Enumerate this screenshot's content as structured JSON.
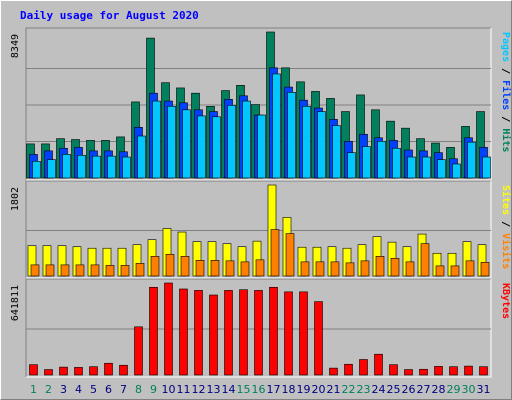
{
  "chart_data": {
    "type": "bar",
    "title": "Daily usage for August 2020",
    "colors": {
      "background": "#c0c0c0",
      "plot": "#c0c0c0",
      "title": "#0000ff",
      "hits": "#00805c",
      "files": "#0040ff",
      "pages": "#00c8ff",
      "visits": "#ff8000",
      "sites": "#ffff00",
      "kbytes": "#ff0000",
      "weekday_label": "#000080",
      "weekend_label": "#00805c",
      "gridline": "#808080"
    },
    "categories": [
      "1",
      "2",
      "3",
      "4",
      "5",
      "6",
      "7",
      "8",
      "9",
      "10",
      "11",
      "12",
      "13",
      "14",
      "15",
      "16",
      "17",
      "18",
      "19",
      "20",
      "21",
      "22",
      "23",
      "24",
      "25",
      "26",
      "27",
      "28",
      "29",
      "30",
      "31"
    ],
    "weekend_days": [
      "1",
      "2",
      "8",
      "9",
      "15",
      "16",
      "22",
      "23",
      "29",
      "30"
    ],
    "panels": [
      {
        "id": "hits-panel",
        "max_label": "8349",
        "ylim": [
          0,
          8349
        ],
        "legend": [
          {
            "text": "Pages",
            "color": "#00c8ff"
          },
          {
            "text": "Files",
            "color": "#0040ff"
          },
          {
            "text": "Hits",
            "color": "#00805c"
          }
        ],
        "series": [
          {
            "key": "hits",
            "color": "#00805c",
            "values": [
              1950,
              1950,
              2250,
              2200,
              2150,
              2150,
              2350,
              4350,
              8000,
              5450,
              5150,
              4850,
              4100,
              5000,
              5300,
              4200,
              8349,
              6300,
              5500,
              4950,
              4550,
              3800,
              4750,
              3900,
              3250,
              2850,
              2250,
              2000,
              1750,
              2950,
              3800
            ]
          },
          {
            "key": "files",
            "color": "#0040ff",
            "values": [
              1350,
              1550,
              1700,
              1750,
              1550,
              1550,
              1500,
              2900,
              4850,
              4400,
              4300,
              3900,
              3800,
              4500,
              4700,
              3600,
              6300,
              5200,
              4450,
              4000,
              3350,
              2100,
              2500,
              2300,
              2150,
              1600,
              1550,
              1450,
              1100,
              2300,
              1750
            ]
          },
          {
            "key": "pages",
            "color": "#00c8ff",
            "values": [
              950,
              1050,
              1350,
              1300,
              1250,
              1250,
              1200,
              2400,
              4400,
              4100,
              3900,
              3550,
              3500,
              4150,
              4400,
              3600,
              5950,
              4900,
              4100,
              3800,
              3000,
              1450,
              1800,
              2100,
              1700,
              1200,
              1200,
              1050,
              800,
              2050,
              1200
            ]
          }
        ]
      },
      {
        "id": "sites-panel",
        "max_label": "1802",
        "ylim": [
          0,
          1802
        ],
        "legend": [
          {
            "text": "Sites",
            "color": "#ffff00"
          },
          {
            "text": "Visits",
            "color": "#ff8000"
          }
        ],
        "series": [
          {
            "key": "sites",
            "color": "#ffff00",
            "values": [
              600,
              600,
              600,
              580,
              550,
              550,
              550,
              620,
              720,
              940,
              870,
              680,
              680,
              640,
              580,
              690,
              1802,
              1160,
              570,
              570,
              580,
              550,
              620,
              780,
              670,
              580,
              830,
              450,
              450,
              680,
              620
            ]
          },
          {
            "key": "visits",
            "color": "#ff8000",
            "values": [
              220,
              220,
              220,
              220,
              220,
              210,
              210,
              250,
              390,
              430,
              390,
              310,
              310,
              300,
              280,
              320,
              920,
              840,
              280,
              280,
              280,
              260,
              300,
              390,
              350,
              280,
              640,
              200,
              200,
              300,
              270
            ]
          }
        ]
      },
      {
        "id": "kbytes-panel",
        "max_label": "641811",
        "ylim": [
          0,
          641811
        ],
        "legend": [
          {
            "text": "KBytes",
            "color": "#ff0000"
          }
        ],
        "series": [
          {
            "key": "kbytes",
            "color": "#ff0000",
            "values": [
              72000,
              38000,
              55000,
              53000,
              58000,
              82000,
              68000,
              336000,
              612000,
              641811,
              600000,
              590000,
              558000,
              590000,
              595000,
              590000,
              612000,
              580000,
              580000,
              512000,
              48000,
              75000,
              108000,
              145000,
              72000,
              38000,
              40000,
              60000,
              58000,
              62000,
              58000
            ]
          }
        ]
      }
    ]
  }
}
